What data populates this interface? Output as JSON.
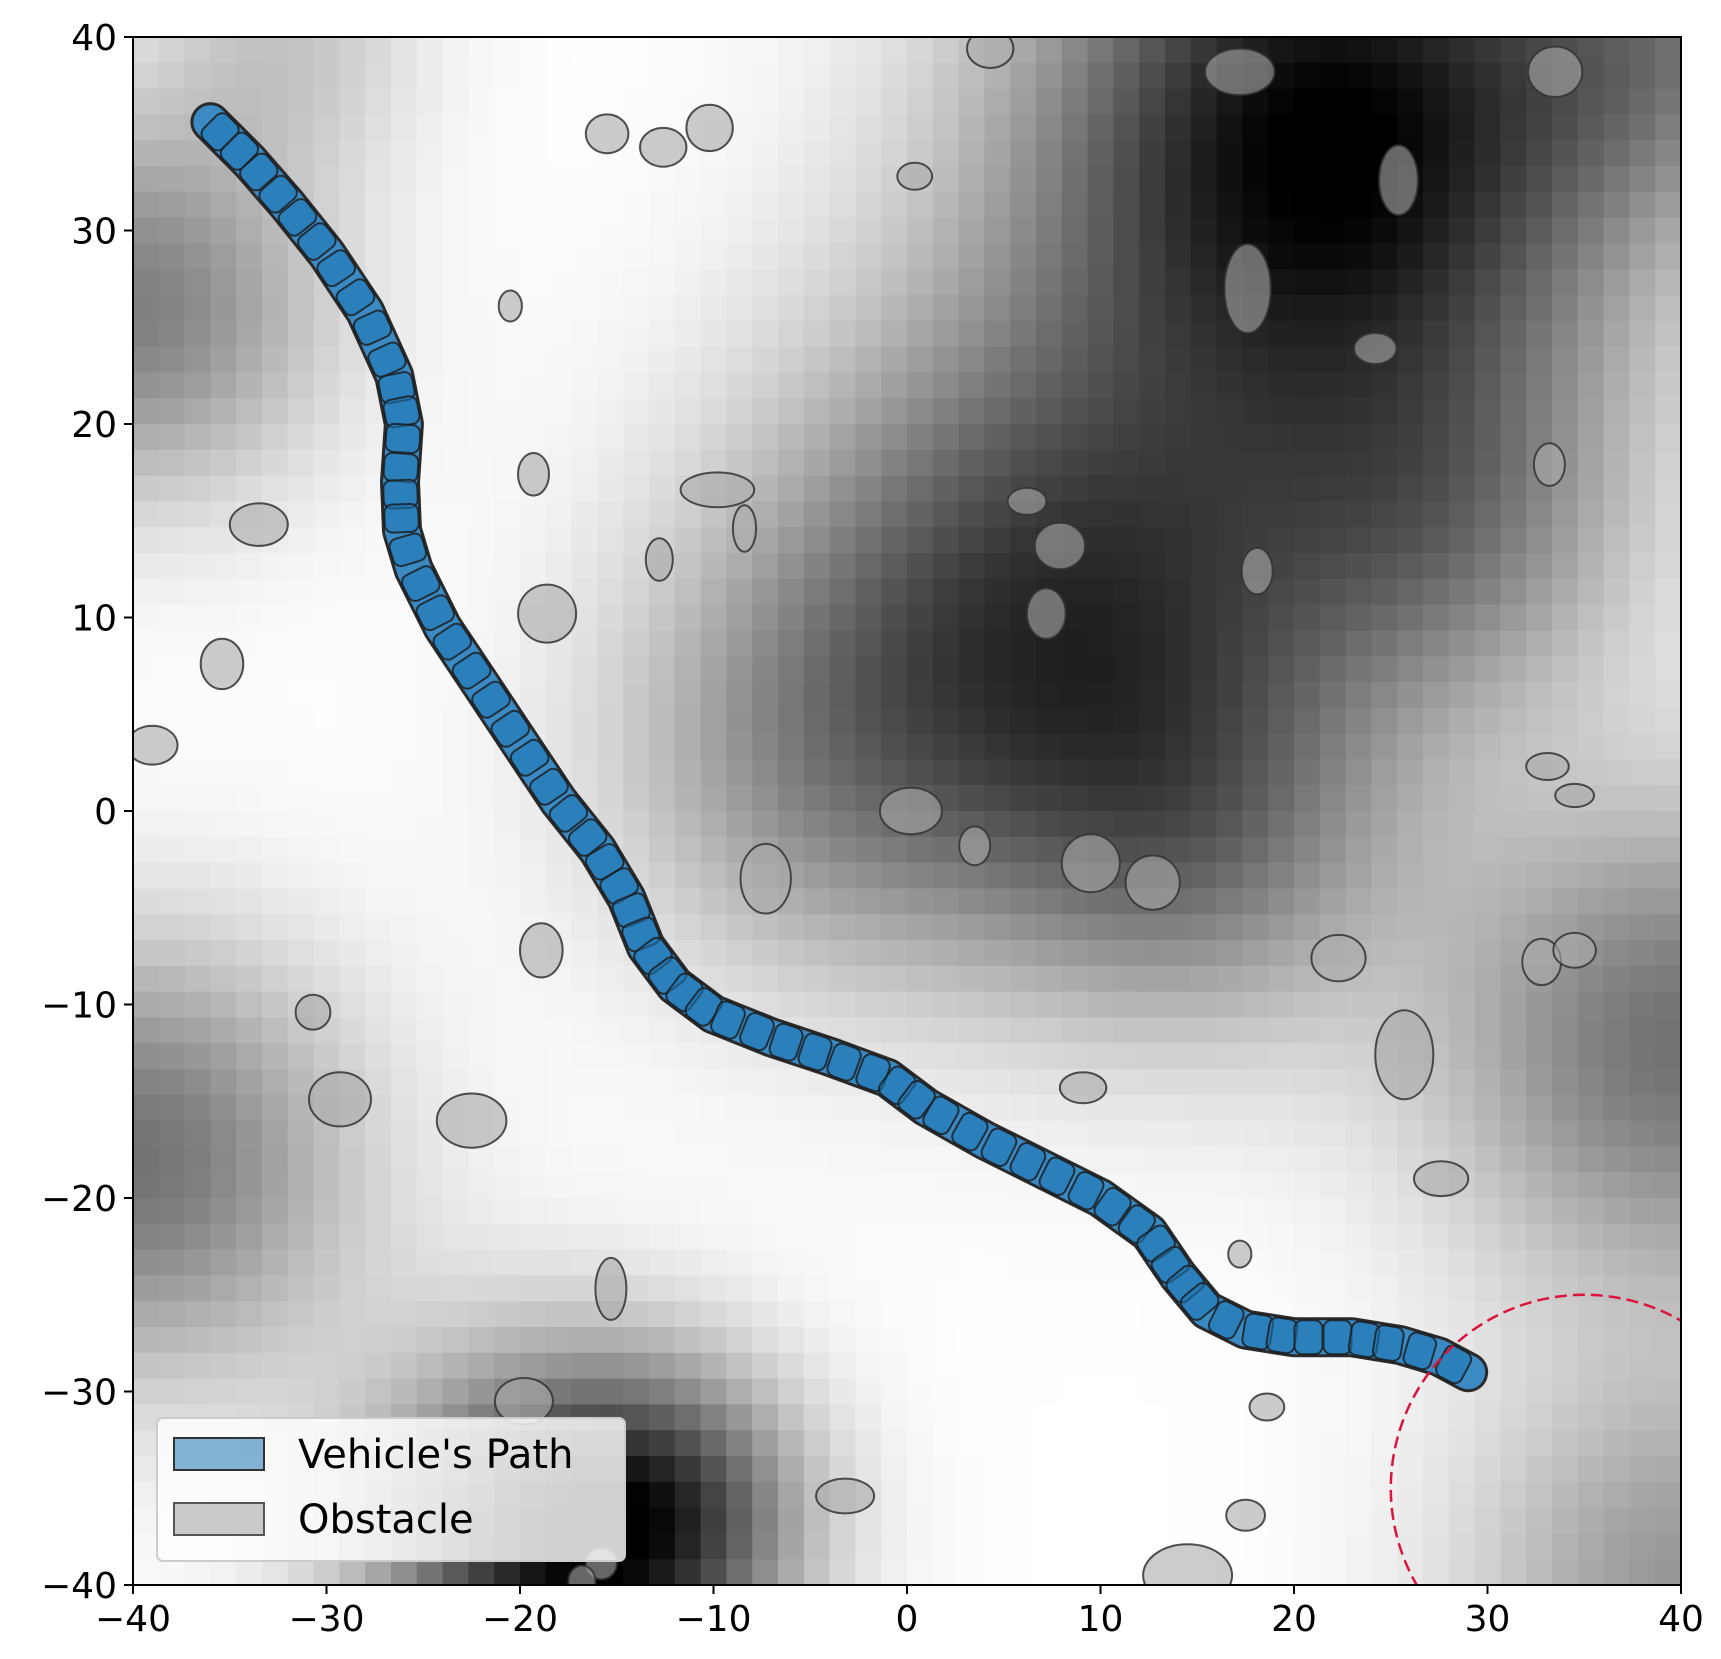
{
  "chart_data": {
    "type": "scatter",
    "title": "",
    "xlabel": "",
    "ylabel": "",
    "xlim": [
      -40,
      40
    ],
    "ylim": [
      -40,
      40
    ],
    "xticks": [
      -40,
      -30,
      -20,
      -10,
      0,
      10,
      20,
      30,
      40
    ],
    "yticks": [
      -40,
      -30,
      -20,
      -10,
      0,
      10,
      20,
      30,
      40
    ],
    "xtick_labels": [
      "−40",
      "−30",
      "−20",
      "−10",
      "0",
      "10",
      "20",
      "30",
      "40"
    ],
    "ytick_labels": [
      "−40",
      "−30",
      "−20",
      "−10",
      "0",
      "10",
      "20",
      "30",
      "40"
    ],
    "grid": false,
    "legend_position": "lower-left",
    "legend": [
      {
        "label": "Vehicle's Path",
        "color": "#1f77b4"
      },
      {
        "label": "Obstacle",
        "color": "#aaaaaa"
      }
    ],
    "background_field": {
      "colormap": "gray",
      "blobs": [
        {
          "x": 22,
          "y": 35,
          "sigma": 11,
          "amp": 1.0
        },
        {
          "x": 8,
          "y": 10,
          "sigma": 11,
          "amp": 0.75
        },
        {
          "x": 28,
          "y": 15,
          "sigma": 7,
          "amp": 0.35
        },
        {
          "x": -18,
          "y": -38,
          "sigma": 7,
          "amp": 0.85
        },
        {
          "x": -12,
          "y": -36,
          "sigma": 5,
          "amp": 0.35
        },
        {
          "x": 40,
          "y": -12,
          "sigma": 9,
          "amp": 0.55
        },
        {
          "x": -40,
          "y": 26,
          "sigma": 7,
          "amp": 0.5
        },
        {
          "x": -40,
          "y": -18,
          "sigma": 8,
          "amp": 0.55
        },
        {
          "x": 15,
          "y": -2,
          "sigma": 7,
          "amp": 0.3
        },
        {
          "x": -5,
          "y": 2,
          "sigma": 8,
          "amp": 0.25
        },
        {
          "x": 40,
          "y": 40,
          "sigma": 6,
          "amp": 0.3
        },
        {
          "x": -32,
          "y": 40,
          "sigma": 5,
          "amp": 0.2
        },
        {
          "x": 40,
          "y": -40,
          "sigma": 8,
          "amp": 0.4
        }
      ]
    },
    "vehicle_path": [
      [
        -36,
        35.6
      ],
      [
        -34,
        33.6
      ],
      [
        -32,
        31.3
      ],
      [
        -30,
        28.8
      ],
      [
        -28,
        25.8
      ],
      [
        -26.5,
        22.5
      ],
      [
        -26,
        20
      ],
      [
        -26.2,
        17
      ],
      [
        -26.1,
        14.5
      ],
      [
        -25.5,
        12.5
      ],
      [
        -24,
        9.5
      ],
      [
        -22,
        6.5
      ],
      [
        -20,
        3.5
      ],
      [
        -18,
        0.5
      ],
      [
        -16,
        -2
      ],
      [
        -14.5,
        -4.5
      ],
      [
        -13.5,
        -7
      ],
      [
        -12,
        -9
      ],
      [
        -10,
        -10.5
      ],
      [
        -7,
        -11.7
      ],
      [
        -4,
        -12.7
      ],
      [
        -1,
        -13.8
      ],
      [
        1,
        -15.3
      ],
      [
        4,
        -17
      ],
      [
        7,
        -18.5
      ],
      [
        10,
        -20
      ],
      [
        12.5,
        -21.8
      ],
      [
        14,
        -24
      ],
      [
        15.5,
        -25.8
      ],
      [
        17.5,
        -26.8
      ],
      [
        20,
        -27.2
      ],
      [
        23,
        -27.2
      ],
      [
        25.5,
        -27.6
      ],
      [
        27.5,
        -28.2
      ],
      [
        29,
        -29
      ]
    ],
    "target_circle": {
      "x": 35,
      "y": -35,
      "radius": 10,
      "color": "#dc143c"
    },
    "obstacles": [
      {
        "x": -35.4,
        "y": 7.6,
        "rx": 1.1,
        "ry": 1.3
      },
      {
        "x": -39,
        "y": 3.4,
        "rx": 1.3,
        "ry": 1.0
      },
      {
        "x": -33.5,
        "y": 14.8,
        "rx": 1.5,
        "ry": 1.1
      },
      {
        "x": -20.5,
        "y": 26.1,
        "rx": 0.6,
        "ry": 0.8
      },
      {
        "x": -19.3,
        "y": 17.4,
        "rx": 0.8,
        "ry": 1.1
      },
      {
        "x": -18.6,
        "y": 10.2,
        "rx": 1.5,
        "ry": 1.5
      },
      {
        "x": -12.8,
        "y": 13,
        "rx": 0.7,
        "ry": 1.1
      },
      {
        "x": -9.8,
        "y": 16.6,
        "rx": 1.9,
        "ry": 0.9
      },
      {
        "x": -8.4,
        "y": 14.6,
        "rx": 0.6,
        "ry": 1.2
      },
      {
        "x": -15.5,
        "y": 35,
        "rx": 1.1,
        "ry": 1.0
      },
      {
        "x": -12.6,
        "y": 34.3,
        "rx": 1.2,
        "ry": 1.0
      },
      {
        "x": -10.2,
        "y": 35.3,
        "rx": 1.2,
        "ry": 1.2
      },
      {
        "x": 0.4,
        "y": 32.8,
        "rx": 0.9,
        "ry": 0.7
      },
      {
        "x": 4.3,
        "y": 39.4,
        "rx": 1.2,
        "ry": 1.0
      },
      {
        "x": 17.2,
        "y": 38.2,
        "rx": 1.8,
        "ry": 1.2
      },
      {
        "x": 33.5,
        "y": 38.2,
        "rx": 1.4,
        "ry": 1.3
      },
      {
        "x": 25.4,
        "y": 32.6,
        "rx": 1.0,
        "ry": 1.8
      },
      {
        "x": 17.6,
        "y": 27,
        "rx": 1.2,
        "ry": 2.3
      },
      {
        "x": 24.2,
        "y": 23.9,
        "rx": 1.1,
        "ry": 0.8
      },
      {
        "x": 33.2,
        "y": 17.9,
        "rx": 0.8,
        "ry": 1.1
      },
      {
        "x": 6.2,
        "y": 16,
        "rx": 1.0,
        "ry": 0.7
      },
      {
        "x": 7.9,
        "y": 13.7,
        "rx": 1.3,
        "ry": 1.2
      },
      {
        "x": 7.2,
        "y": 10.2,
        "rx": 1.0,
        "ry": 1.3
      },
      {
        "x": 18.1,
        "y": 12.4,
        "rx": 0.8,
        "ry": 1.2
      },
      {
        "x": 33.1,
        "y": 2.3,
        "rx": 1.1,
        "ry": 0.7
      },
      {
        "x": 34.5,
        "y": 0.8,
        "rx": 1.0,
        "ry": 0.6
      },
      {
        "x": 0.2,
        "y": 0,
        "rx": 1.6,
        "ry": 1.2
      },
      {
        "x": 3.5,
        "y": -1.8,
        "rx": 0.8,
        "ry": 1.0
      },
      {
        "x": -7.3,
        "y": -3.5,
        "rx": 1.3,
        "ry": 1.8
      },
      {
        "x": 9.5,
        "y": -2.7,
        "rx": 1.5,
        "ry": 1.5
      },
      {
        "x": 12.7,
        "y": -3.7,
        "rx": 1.4,
        "ry": 1.4
      },
      {
        "x": -18.9,
        "y": -7.2,
        "rx": 1.1,
        "ry": 1.4
      },
      {
        "x": -30.7,
        "y": -10.4,
        "rx": 0.9,
        "ry": 0.9
      },
      {
        "x": -29.3,
        "y": -14.9,
        "rx": 1.6,
        "ry": 1.4
      },
      {
        "x": -22.5,
        "y": -16,
        "rx": 1.8,
        "ry": 1.4
      },
      {
        "x": 22.3,
        "y": -7.6,
        "rx": 1.4,
        "ry": 1.2
      },
      {
        "x": 32.8,
        "y": -7.8,
        "rx": 1.0,
        "ry": 1.2
      },
      {
        "x": 34.5,
        "y": -7.2,
        "rx": 1.1,
        "ry": 0.9
      },
      {
        "x": 25.7,
        "y": -12.6,
        "rx": 1.5,
        "ry": 2.3
      },
      {
        "x": 9.1,
        "y": -14.3,
        "rx": 1.2,
        "ry": 0.8
      },
      {
        "x": 27.6,
        "y": -19,
        "rx": 1.4,
        "ry": 0.9
      },
      {
        "x": 17.2,
        "y": -22.9,
        "rx": 0.6,
        "ry": 0.7
      },
      {
        "x": -15.3,
        "y": -24.7,
        "rx": 0.8,
        "ry": 1.6
      },
      {
        "x": -19.8,
        "y": -30.5,
        "rx": 1.5,
        "ry": 1.2
      },
      {
        "x": 18.6,
        "y": -30.8,
        "rx": 0.9,
        "ry": 0.7
      },
      {
        "x": -3.2,
        "y": -35.4,
        "rx": 1.5,
        "ry": 0.9
      },
      {
        "x": 17.5,
        "y": -36.4,
        "rx": 1.0,
        "ry": 0.8
      },
      {
        "x": 14.5,
        "y": -39.5,
        "rx": 2.3,
        "ry": 1.6
      },
      {
        "x": -15.8,
        "y": -38.9,
        "rx": 0.8,
        "ry": 0.8
      },
      {
        "x": -16.8,
        "y": -39.8,
        "rx": 0.7,
        "ry": 0.8
      }
    ]
  }
}
